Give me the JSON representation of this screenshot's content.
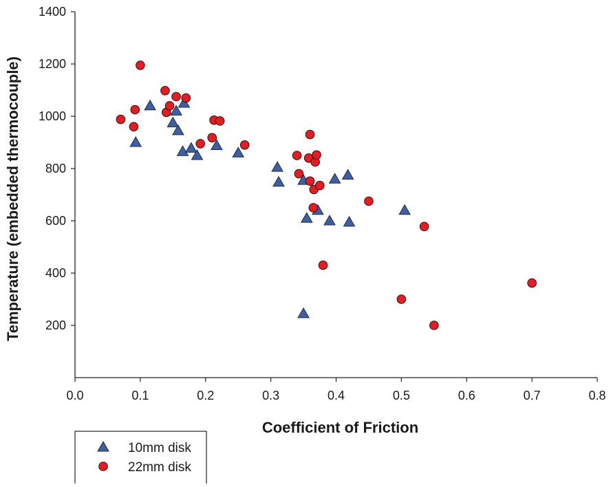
{
  "chart_data": {
    "type": "scatter",
    "title": "",
    "xlabel": "Coefficient of Friction",
    "ylabel": "Temperature (embedded thermocouple)",
    "xlim": [
      0.0,
      0.8
    ],
    "ylim": [
      0,
      1400
    ],
    "x_ticks": [
      "0.0",
      "0.1",
      "0.2",
      "0.3",
      "0.4",
      "0.5",
      "0.6",
      "0.7",
      "0.8"
    ],
    "y_ticks": [
      "200",
      "400",
      "600",
      "800",
      "1000",
      "1200",
      "1400"
    ],
    "grid": false,
    "legend_position": "bottom-left",
    "series": [
      {
        "name": "10mm disk",
        "marker": "triangle",
        "color": "#3f5fa0",
        "points": [
          [
            0.093,
            900
          ],
          [
            0.115,
            1040
          ],
          [
            0.155,
            1020
          ],
          [
            0.15,
            975
          ],
          [
            0.158,
            945
          ],
          [
            0.167,
            1050
          ],
          [
            0.165,
            865
          ],
          [
            0.178,
            878
          ],
          [
            0.187,
            850
          ],
          [
            0.217,
            888
          ],
          [
            0.25,
            860
          ],
          [
            0.31,
            805
          ],
          [
            0.312,
            748
          ],
          [
            0.35,
            755
          ],
          [
            0.355,
            610
          ],
          [
            0.372,
            640
          ],
          [
            0.39,
            600
          ],
          [
            0.398,
            760
          ],
          [
            0.418,
            775
          ],
          [
            0.42,
            595
          ],
          [
            0.505,
            640
          ],
          [
            0.35,
            245
          ]
        ]
      },
      {
        "name": "22mm disk",
        "marker": "circle",
        "color": "#e01e26",
        "points": [
          [
            0.07,
            988
          ],
          [
            0.09,
            960
          ],
          [
            0.092,
            1025
          ],
          [
            0.1,
            1195
          ],
          [
            0.138,
            1098
          ],
          [
            0.14,
            1015
          ],
          [
            0.145,
            1040
          ],
          [
            0.155,
            1075
          ],
          [
            0.17,
            1070
          ],
          [
            0.192,
            895
          ],
          [
            0.21,
            918
          ],
          [
            0.213,
            985
          ],
          [
            0.222,
            982
          ],
          [
            0.26,
            890
          ],
          [
            0.34,
            850
          ],
          [
            0.343,
            780
          ],
          [
            0.36,
            930
          ],
          [
            0.358,
            840
          ],
          [
            0.36,
            752
          ],
          [
            0.368,
            825
          ],
          [
            0.37,
            852
          ],
          [
            0.366,
            720
          ],
          [
            0.375,
            735
          ],
          [
            0.365,
            650
          ],
          [
            0.38,
            430
          ],
          [
            0.45,
            675
          ],
          [
            0.5,
            300
          ],
          [
            0.535,
            578
          ],
          [
            0.55,
            200
          ],
          [
            0.7,
            362
          ]
        ]
      }
    ]
  }
}
